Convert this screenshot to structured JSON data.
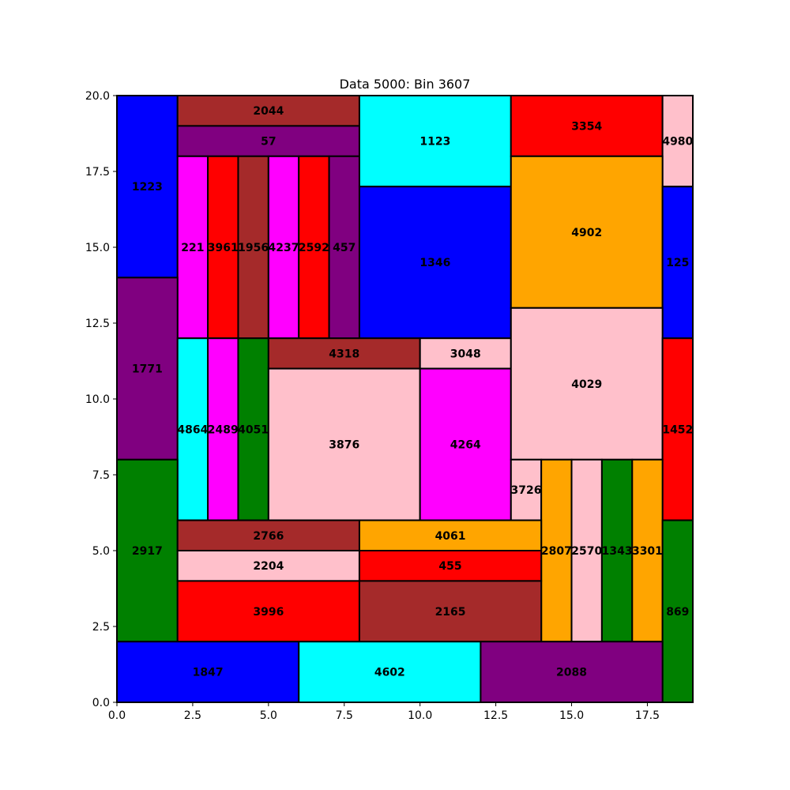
{
  "chart_data": {
    "type": "rectangle-packing",
    "title": "Data 5000: Bin 3607",
    "xlim": [
      0,
      19
    ],
    "ylim": [
      0,
      20
    ],
    "x_ticks": [
      "0.0",
      "2.5",
      "5.0",
      "7.5",
      "10.0",
      "12.5",
      "15.0",
      "17.5"
    ],
    "y_ticks": [
      "0.0",
      "2.5",
      "5.0",
      "7.5",
      "10.0",
      "12.5",
      "15.0",
      "17.5",
      "20.0"
    ],
    "x_tick_values": [
      0,
      2.5,
      5,
      7.5,
      10,
      12.5,
      15,
      17.5
    ],
    "y_tick_values": [
      0,
      2.5,
      5,
      7.5,
      10,
      12.5,
      15,
      17.5,
      20
    ],
    "grid": false,
    "rects": [
      {
        "label": "1223",
        "x0": 0,
        "y0": 14,
        "x1": 2,
        "y1": 20,
        "color": "#0000ff"
      },
      {
        "label": "2044",
        "x0": 2,
        "y0": 19,
        "x1": 8,
        "y1": 20,
        "color": "#a52a2a"
      },
      {
        "label": "57",
        "x0": 2,
        "y0": 18,
        "x1": 8,
        "y1": 19,
        "color": "#800080"
      },
      {
        "label": "221",
        "x0": 2,
        "y0": 12,
        "x1": 3,
        "y1": 18,
        "color": "#ff00ff"
      },
      {
        "label": "3961",
        "x0": 3,
        "y0": 12,
        "x1": 4,
        "y1": 18,
        "color": "#ff0000"
      },
      {
        "label": "1956",
        "x0": 4,
        "y0": 12,
        "x1": 5,
        "y1": 18,
        "color": "#a52a2a"
      },
      {
        "label": "4237",
        "x0": 5,
        "y0": 12,
        "x1": 6,
        "y1": 18,
        "color": "#ff00ff"
      },
      {
        "label": "2592",
        "x0": 6,
        "y0": 12,
        "x1": 7,
        "y1": 18,
        "color": "#ff0000"
      },
      {
        "label": "457",
        "x0": 7,
        "y0": 12,
        "x1": 8,
        "y1": 18,
        "color": "#800080"
      },
      {
        "label": "1123",
        "x0": 8,
        "y0": 17,
        "x1": 13,
        "y1": 20,
        "color": "#00ffff"
      },
      {
        "label": "1346",
        "x0": 8,
        "y0": 12,
        "x1": 13,
        "y1": 17,
        "color": "#0000ff"
      },
      {
        "label": "3354",
        "x0": 13,
        "y0": 18,
        "x1": 18,
        "y1": 20,
        "color": "#ff0000"
      },
      {
        "label": "4980",
        "x0": 18,
        "y0": 17,
        "x1": 19,
        "y1": 20,
        "color": "#ffc0cb"
      },
      {
        "label": "4902",
        "x0": 13,
        "y0": 13,
        "x1": 18,
        "y1": 18,
        "color": "#ffa500"
      },
      {
        "label": "125",
        "x0": 18,
        "y0": 12,
        "x1": 19,
        "y1": 17,
        "color": "#0000ff"
      },
      {
        "label": "1771",
        "x0": 0,
        "y0": 8,
        "x1": 2,
        "y1": 14,
        "color": "#800080"
      },
      {
        "label": "4864",
        "x0": 2,
        "y0": 6,
        "x1": 3,
        "y1": 12,
        "color": "#00ffff"
      },
      {
        "label": "2489",
        "x0": 3,
        "y0": 6,
        "x1": 4,
        "y1": 12,
        "color": "#ff00ff"
      },
      {
        "label": "4051",
        "x0": 4,
        "y0": 6,
        "x1": 5,
        "y1": 12,
        "color": "#008000"
      },
      {
        "label": "4318",
        "x0": 5,
        "y0": 11,
        "x1": 10,
        "y1": 12,
        "color": "#a52a2a"
      },
      {
        "label": "3048",
        "x0": 10,
        "y0": 11,
        "x1": 13,
        "y1": 12,
        "color": "#ffc0cb"
      },
      {
        "label": "3876",
        "x0": 5,
        "y0": 6,
        "x1": 10,
        "y1": 11,
        "color": "#ffc0cb"
      },
      {
        "label": "4264",
        "x0": 10,
        "y0": 6,
        "x1": 13,
        "y1": 11,
        "color": "#ff00ff"
      },
      {
        "label": "4029",
        "x0": 13,
        "y0": 8,
        "x1": 18,
        "y1": 13,
        "color": "#ffc0cb"
      },
      {
        "label": "1452",
        "x0": 18,
        "y0": 6,
        "x1": 19,
        "y1": 12,
        "color": "#ff0000"
      },
      {
        "label": "2917",
        "x0": 0,
        "y0": 2,
        "x1": 2,
        "y1": 8,
        "color": "#008000"
      },
      {
        "label": "3726",
        "x0": 13,
        "y0": 6,
        "x1": 14,
        "y1": 8,
        "color": "#ffc0cb"
      },
      {
        "label": "2807",
        "x0": 14,
        "y0": 2,
        "x1": 15,
        "y1": 8,
        "color": "#ffa500"
      },
      {
        "label": "2570",
        "x0": 15,
        "y0": 2,
        "x1": 16,
        "y1": 8,
        "color": "#ffc0cb"
      },
      {
        "label": "1343",
        "x0": 16,
        "y0": 2,
        "x1": 17,
        "y1": 8,
        "color": "#008000"
      },
      {
        "label": "3301",
        "x0": 17,
        "y0": 2,
        "x1": 18,
        "y1": 8,
        "color": "#ffa500"
      },
      {
        "label": "2766",
        "x0": 2,
        "y0": 5,
        "x1": 8,
        "y1": 6,
        "color": "#a52a2a"
      },
      {
        "label": "4061",
        "x0": 8,
        "y0": 5,
        "x1": 14,
        "y1": 6,
        "color": "#ffa500"
      },
      {
        "label": "2204",
        "x0": 2,
        "y0": 4,
        "x1": 8,
        "y1": 5,
        "color": "#ffc0cb"
      },
      {
        "label": "455",
        "x0": 8,
        "y0": 4,
        "x1": 14,
        "y1": 5,
        "color": "#ff0000"
      },
      {
        "label": "3996",
        "x0": 2,
        "y0": 2,
        "x1": 8,
        "y1": 4,
        "color": "#ff0000"
      },
      {
        "label": "2165",
        "x0": 8,
        "y0": 2,
        "x1": 14,
        "y1": 4,
        "color": "#a52a2a"
      },
      {
        "label": "869",
        "x0": 18,
        "y0": 0,
        "x1": 19,
        "y1": 6,
        "color": "#008000"
      },
      {
        "label": "1847",
        "x0": 0,
        "y0": 0,
        "x1": 6,
        "y1": 2,
        "color": "#0000ff"
      },
      {
        "label": "4602",
        "x0": 6,
        "y0": 0,
        "x1": 12,
        "y1": 2,
        "color": "#00ffff"
      },
      {
        "label": "2088",
        "x0": 12,
        "y0": 0,
        "x1": 18,
        "y1": 2,
        "color": "#800080"
      }
    ]
  }
}
